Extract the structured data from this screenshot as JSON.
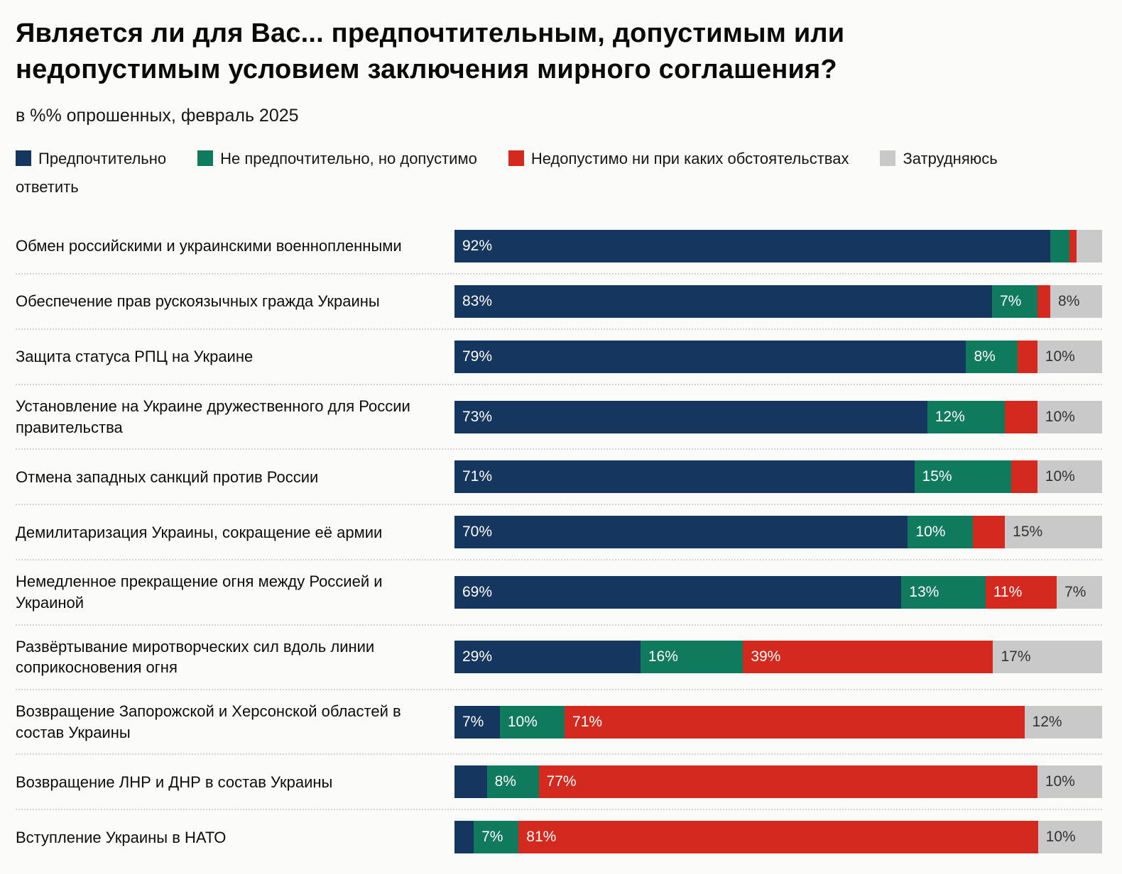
{
  "title": "Является ли для Вас... предпочтительным, допустимым или недопустимым условием заключения мирного соглашения?",
  "subtitle": "в %% опрошенных, февраль 2025",
  "colors": {
    "preferable": "#15365f",
    "acceptable": "#107a5c",
    "unacceptable": "#d3291e",
    "undecided": "#c9c9c9"
  },
  "legend": {
    "items": [
      {
        "key": "preferable",
        "label": "Предпочтительно"
      },
      {
        "key": "acceptable",
        "label": "Не предпочтительно, но допустимо"
      },
      {
        "key": "unacceptable",
        "label": "Недопустимо ни при каких обстоятельствах"
      },
      {
        "key": "undecided",
        "label": "Затрудняюсь ответить",
        "label_line1": "Затрудняюсь",
        "label_line2": "ответить"
      }
    ]
  },
  "chart": {
    "rows": [
      {
        "label": "Обмен российскими и украинскими военнопленными",
        "segments": [
          {
            "series": "preferable",
            "value": 92,
            "label": "92%"
          },
          {
            "series": "acceptable",
            "value": 3,
            "label": ""
          },
          {
            "series": "unacceptable",
            "value": 1,
            "label": ""
          },
          {
            "series": "undecided",
            "value": 4,
            "label": ""
          }
        ]
      },
      {
        "label": "Обеспечение прав рускоязычных гражда Украины",
        "segments": [
          {
            "series": "preferable",
            "value": 83,
            "label": "83%"
          },
          {
            "series": "acceptable",
            "value": 7,
            "label": "7%"
          },
          {
            "series": "unacceptable",
            "value": 2,
            "label": ""
          },
          {
            "series": "undecided",
            "value": 8,
            "label": "8%"
          }
        ]
      },
      {
        "label": "Защита статуса РПЦ на Украине",
        "segments": [
          {
            "series": "preferable",
            "value": 79,
            "label": "79%"
          },
          {
            "series": "acceptable",
            "value": 8,
            "label": "8%"
          },
          {
            "series": "unacceptable",
            "value": 3,
            "label": ""
          },
          {
            "series": "undecided",
            "value": 10,
            "label": "10%"
          }
        ]
      },
      {
        "label": "Установление на Украине дружественного для России правительства",
        "segments": [
          {
            "series": "preferable",
            "value": 73,
            "label": "73%"
          },
          {
            "series": "acceptable",
            "value": 12,
            "label": "12%"
          },
          {
            "series": "unacceptable",
            "value": 5,
            "label": ""
          },
          {
            "series": "undecided",
            "value": 10,
            "label": "10%"
          }
        ]
      },
      {
        "label": "Отмена западных санкций против России",
        "segments": [
          {
            "series": "preferable",
            "value": 71,
            "label": "71%"
          },
          {
            "series": "acceptable",
            "value": 15,
            "label": "15%"
          },
          {
            "series": "unacceptable",
            "value": 4,
            "label": ""
          },
          {
            "series": "undecided",
            "value": 10,
            "label": "10%"
          }
        ]
      },
      {
        "label": "Демилитаризация Украины, сокращение её армии",
        "segments": [
          {
            "series": "preferable",
            "value": 70,
            "label": "70%"
          },
          {
            "series": "acceptable",
            "value": 10,
            "label": "10%"
          },
          {
            "series": "unacceptable",
            "value": 5,
            "label": ""
          },
          {
            "series": "undecided",
            "value": 15,
            "label": "15%"
          }
        ]
      },
      {
        "label": "Немедленное прекращение огня между Россией и Украиной",
        "segments": [
          {
            "series": "preferable",
            "value": 69,
            "label": "69%"
          },
          {
            "series": "acceptable",
            "value": 13,
            "label": "13%"
          },
          {
            "series": "unacceptable",
            "value": 11,
            "label": "11%"
          },
          {
            "series": "undecided",
            "value": 7,
            "label": "7%"
          }
        ]
      },
      {
        "label": "Развёртывание миротворческих сил вдоль линии соприкосновения огня",
        "segments": [
          {
            "series": "preferable",
            "value": 29,
            "label": "29%"
          },
          {
            "series": "acceptable",
            "value": 16,
            "label": "16%"
          },
          {
            "series": "unacceptable",
            "value": 39,
            "label": "39%"
          },
          {
            "series": "undecided",
            "value": 17,
            "label": "17%"
          }
        ]
      },
      {
        "label": "Возвращение Запорожской и Херсонской областей в состав Украины",
        "segments": [
          {
            "series": "preferable",
            "value": 7,
            "label": "7%"
          },
          {
            "series": "acceptable",
            "value": 10,
            "label": "10%"
          },
          {
            "series": "unacceptable",
            "value": 71,
            "label": "71%"
          },
          {
            "series": "undecided",
            "value": 12,
            "label": "12%"
          }
        ]
      },
      {
        "label": "Возвращение ЛНР и ДНР в состав Украины",
        "segments": [
          {
            "series": "preferable",
            "value": 5,
            "label": ""
          },
          {
            "series": "acceptable",
            "value": 8,
            "label": "8%"
          },
          {
            "series": "unacceptable",
            "value": 77,
            "label": "77%"
          },
          {
            "series": "undecided",
            "value": 10,
            "label": "10%"
          }
        ]
      },
      {
        "label": "Вступление Украины в НАТО",
        "segments": [
          {
            "series": "preferable",
            "value": 3,
            "label": ""
          },
          {
            "series": "acceptable",
            "value": 7,
            "label": "7%"
          },
          {
            "series": "unacceptable",
            "value": 81,
            "label": "81%"
          },
          {
            "series": "undecided",
            "value": 10,
            "label": "10%"
          }
        ]
      }
    ]
  },
  "chart_data": {
    "type": "bar",
    "orientation": "horizontal",
    "stacked": true,
    "title": "Является ли для Вас... предпочтительным, допустимым или недопустимым условием заключения мирного соглашения?",
    "subtitle": "в %% опрошенных, февраль 2025",
    "value_suffix": "%",
    "xlim": [
      0,
      100
    ],
    "legend_position": "top",
    "categories": [
      "Обмен российскими и украинскими военнопленными",
      "Обеспечение прав рускоязычных гражда Украины",
      "Защита статуса РПЦ на Украине",
      "Установление на Украине дружественного для России правительства",
      "Отмена западных санкций против России",
      "Демилитаризация Украины, сокращение её армии",
      "Немедленное прекращение огня между Россией и Украиной",
      "Развёртывание миротворческих сил вдоль линии соприкосновения огня",
      "Возвращение Запорожской и Херсонской областей в состав Украины",
      "Возвращение ЛНР и ДНР в состав Украины",
      "Вступление Украины в НАТО"
    ],
    "series": [
      {
        "name": "Предпочтительно",
        "color": "#15365f",
        "values": [
          92,
          83,
          79,
          73,
          71,
          70,
          69,
          29,
          7,
          5,
          3
        ]
      },
      {
        "name": "Не предпочтительно, но допустимо",
        "color": "#107a5c",
        "values": [
          3,
          7,
          8,
          12,
          15,
          10,
          13,
          16,
          10,
          8,
          7
        ]
      },
      {
        "name": "Недопустимо ни при каких обстоятельствах",
        "color": "#d3291e",
        "values": [
          1,
          2,
          3,
          5,
          4,
          5,
          11,
          39,
          71,
          77,
          81
        ]
      },
      {
        "name": "Затрудняюсь ответить",
        "color": "#c9c9c9",
        "values": [
          4,
          8,
          10,
          10,
          10,
          15,
          7,
          17,
          12,
          10,
          10
        ]
      }
    ]
  }
}
